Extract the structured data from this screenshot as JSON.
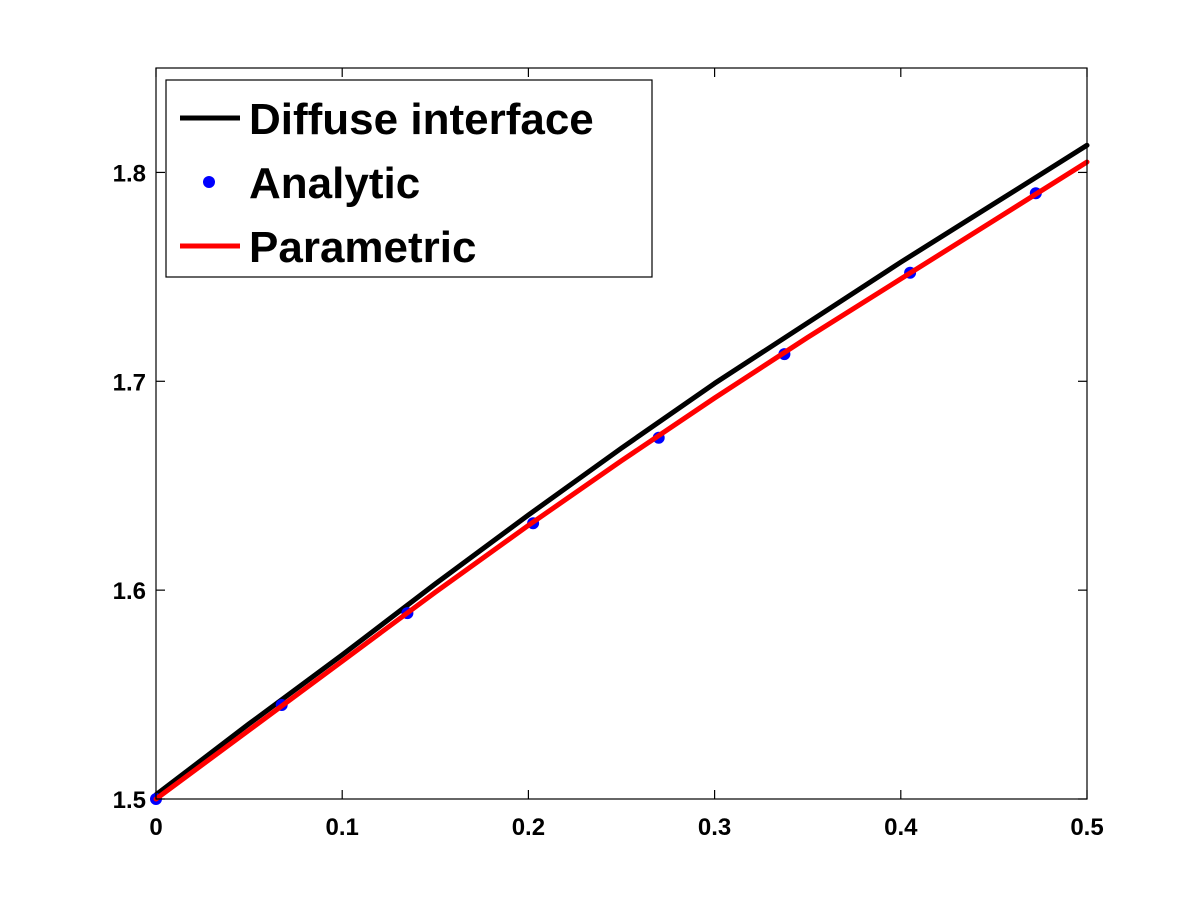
{
  "chart_data": {
    "type": "line",
    "title": "",
    "xlabel": "",
    "ylabel": "",
    "xlim": [
      0,
      0.5
    ],
    "ylim": [
      1.5,
      1.85
    ],
    "x_ticks": [
      0,
      0.1,
      0.2,
      0.3,
      0.4,
      0.5
    ],
    "x_tick_labels": [
      "0",
      "0.1",
      "0.2",
      "0.3",
      "0.4",
      "0.5"
    ],
    "y_ticks": [
      1.5,
      1.6,
      1.7,
      1.8
    ],
    "y_tick_labels": [
      "1.5",
      "1.6",
      "1.7",
      "1.8"
    ],
    "grid": false,
    "legend_position": "top-left",
    "series": [
      {
        "name": "Diffuse interface",
        "style": "line",
        "color": "#000000",
        "x": [
          0,
          0.05,
          0.1,
          0.15,
          0.2,
          0.25,
          0.3,
          0.35,
          0.4,
          0.45,
          0.5
        ],
        "y": [
          1.502,
          1.536,
          1.569,
          1.603,
          1.636,
          1.668,
          1.699,
          1.728,
          1.757,
          1.785,
          1.813
        ]
      },
      {
        "name": "Analytic",
        "style": "markers",
        "color": "#0000ff",
        "x": [
          0,
          0.0675,
          0.135,
          0.2025,
          0.27,
          0.3375,
          0.405,
          0.4725
        ],
        "y": [
          1.5,
          1.545,
          1.589,
          1.632,
          1.673,
          1.713,
          1.752,
          1.79
        ]
      },
      {
        "name": "Parametric",
        "style": "line",
        "color": "#ff0000",
        "x": [
          0,
          0.05,
          0.1,
          0.15,
          0.2,
          0.25,
          0.3,
          0.35,
          0.4,
          0.45,
          0.5
        ],
        "y": [
          1.5,
          1.533,
          1.566,
          1.599,
          1.631,
          1.662,
          1.692,
          1.721,
          1.749,
          1.777,
          1.805
        ]
      }
    ]
  }
}
